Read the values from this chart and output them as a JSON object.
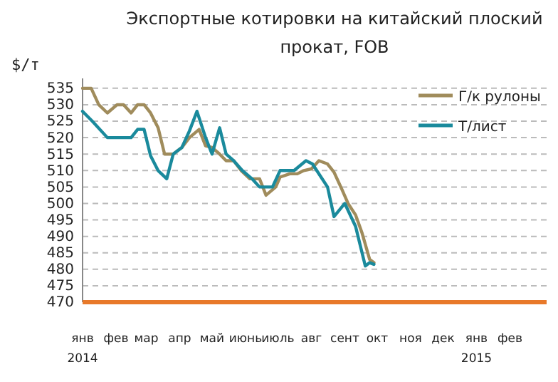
{
  "chart_data": {
    "type": "line",
    "title": "Экспортные котировки на китайский плоский прокат, FOB",
    "ylabel": "$/т",
    "xlim": [
      "2014-01-01",
      "2015-03-07"
    ],
    "xticks": [
      {
        "value": "2014-01-01",
        "label": "янв\n2014"
      },
      {
        "value": "2014-02-01",
        "label": "фев"
      },
      {
        "value": "2014-03-01",
        "label": "мар"
      },
      {
        "value": "2014-04-01",
        "label": "апр"
      },
      {
        "value": "2014-05-01",
        "label": "май"
      },
      {
        "value": "2014-06-01",
        "label": "июнь"
      },
      {
        "value": "2014-07-01",
        "label": "июль"
      },
      {
        "value": "2014-08-01",
        "label": "авг"
      },
      {
        "value": "2014-09-01",
        "label": "сент"
      },
      {
        "value": "2014-10-01",
        "label": "окт"
      },
      {
        "value": "2014-11-01",
        "label": "ноя"
      },
      {
        "value": "2014-12-01",
        "label": "дек"
      },
      {
        "value": "2015-01-01",
        "label": "янв\n2015"
      },
      {
        "value": "2015-02-01",
        "label": "фев"
      }
    ],
    "ylim": [
      470,
      538
    ],
    "yticks": [
      470,
      475,
      480,
      485,
      490,
      495,
      500,
      505,
      510,
      515,
      520,
      525,
      530,
      535
    ],
    "grid": "y",
    "legend": "top right",
    "marker": "none",
    "line_style": "solid",
    "series": [
      {
        "name": "Г/к рулоны",
        "color": "#a08c5c",
        "x": [
          "2014-01-01",
          "2014-01-09",
          "2014-01-16",
          "2014-01-24",
          "2014-02-02",
          "2014-02-08",
          "2014-02-15",
          "2014-02-21",
          "2014-02-27",
          "2014-03-05",
          "2014-03-12",
          "2014-03-18",
          "2014-03-26",
          "2014-04-03",
          "2014-04-10",
          "2014-04-19",
          "2014-04-25",
          "2014-05-01",
          "2014-05-08",
          "2014-05-14",
          "2014-05-21",
          "2014-05-28",
          "2014-06-05",
          "2014-06-14",
          "2014-06-20",
          "2014-06-29",
          "2014-07-03",
          "2014-07-12",
          "2014-07-19",
          "2014-07-25",
          "2014-08-01",
          "2014-08-08",
          "2014-08-16",
          "2014-08-22",
          "2014-08-29",
          "2014-09-04",
          "2014-09-11",
          "2014-09-17",
          "2014-09-24",
          "2014-09-28"
        ],
        "values": [
          535,
          535,
          530,
          527.5,
          530,
          530,
          527.5,
          530,
          530,
          527.5,
          523,
          515,
          515,
          517,
          520,
          522.5,
          517.5,
          517,
          515,
          513,
          513,
          510,
          507.5,
          507.5,
          502.5,
          505,
          508,
          509,
          509,
          510,
          510.5,
          513,
          512,
          509.5,
          504.5,
          500,
          496.5,
          491,
          483,
          482
        ]
      },
      {
        "name": "Т/лист",
        "color": "#1a8a9c",
        "x": [
          "2014-01-01",
          "2014-01-10",
          "2014-01-24",
          "2014-02-08",
          "2014-02-15",
          "2014-02-21",
          "2014-02-27",
          "2014-03-05",
          "2014-03-12",
          "2014-03-20",
          "2014-03-26",
          "2014-04-03",
          "2014-04-10",
          "2014-04-17",
          "2014-04-25",
          "2014-05-01",
          "2014-05-08",
          "2014-05-14",
          "2014-05-21",
          "2014-05-29",
          "2014-06-07",
          "2014-06-14",
          "2014-06-26",
          "2014-07-03",
          "2014-07-16",
          "2014-07-27",
          "2014-08-02",
          "2014-08-16",
          "2014-08-22",
          "2014-09-01",
          "2014-09-11",
          "2014-09-20",
          "2014-09-24",
          "2014-09-28"
        ],
        "values": [
          528,
          525,
          520,
          520,
          520,
          522.5,
          522.5,
          514.5,
          510,
          507.5,
          515,
          517,
          522,
          528,
          520,
          515,
          523,
          515,
          513,
          510,
          507.5,
          505,
          505,
          510,
          510,
          513,
          512,
          505,
          496,
          500,
          493,
          481,
          482,
          481.5
        ]
      }
    ]
  }
}
